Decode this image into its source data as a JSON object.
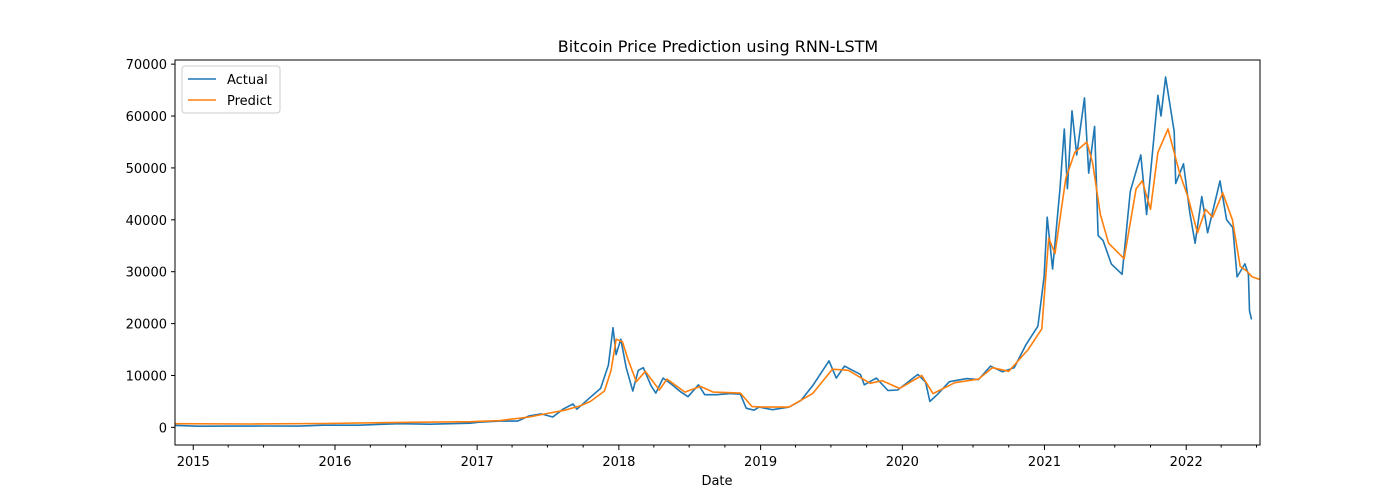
{
  "chart_data": {
    "type": "line",
    "title": "Bitcoin Price Prediction using RNN-LSTM",
    "xlabel": "Date",
    "ylabel": "",
    "x_range": [
      "2014-11-15",
      "2022-07-10"
    ],
    "ylim": [
      -3400,
      70800
    ],
    "grid": false,
    "legend_position": "top-left",
    "y_ticks": [
      0,
      10000,
      20000,
      30000,
      40000,
      50000,
      60000,
      70000
    ],
    "y_tick_labels": [
      "0",
      "10000",
      "20000",
      "30000",
      "40000",
      "50000",
      "60000",
      "70000"
    ],
    "x_ticks": [
      "2015-01-01",
      "2016-01-01",
      "2017-01-01",
      "2018-01-01",
      "2019-01-01",
      "2020-01-01",
      "2021-01-01",
      "2022-01-01"
    ],
    "x_tick_labels": [
      "2015",
      "2016",
      "2017",
      "2018",
      "2019",
      "2020",
      "2021",
      "2022"
    ],
    "colors": {
      "Actual": "#1f77b4",
      "Predict": "#ff7f0e"
    },
    "series": [
      {
        "name": "Actual",
        "points": [
          [
            "2014-11-15",
            380
          ],
          [
            "2015-01-15",
            220
          ],
          [
            "2015-04-01",
            240
          ],
          [
            "2015-07-01",
            260
          ],
          [
            "2015-10-01",
            240
          ],
          [
            "2015-12-01",
            420
          ],
          [
            "2016-03-01",
            420
          ],
          [
            "2016-06-15",
            700
          ],
          [
            "2016-09-01",
            600
          ],
          [
            "2016-12-15",
            800
          ],
          [
            "2017-01-05",
            1000
          ],
          [
            "2017-03-01",
            1200
          ],
          [
            "2017-04-15",
            1200
          ],
          [
            "2017-05-15",
            2200
          ],
          [
            "2017-06-15",
            2600
          ],
          [
            "2017-07-15",
            2000
          ],
          [
            "2017-08-10",
            3500
          ],
          [
            "2017-09-05",
            4500
          ],
          [
            "2017-09-15",
            3500
          ],
          [
            "2017-10-15",
            5500
          ],
          [
            "2017-11-15",
            7500
          ],
          [
            "2017-12-05",
            12000
          ],
          [
            "2017-12-17",
            19200
          ],
          [
            "2017-12-25",
            14000
          ],
          [
            "2018-01-06",
            17000
          ],
          [
            "2018-01-20",
            11500
          ],
          [
            "2018-02-06",
            7000
          ],
          [
            "2018-02-20",
            11000
          ],
          [
            "2018-03-05",
            11500
          ],
          [
            "2018-03-25",
            8000
          ],
          [
            "2018-04-06",
            6600
          ],
          [
            "2018-04-25",
            9500
          ],
          [
            "2018-05-15",
            8400
          ],
          [
            "2018-06-10",
            6800
          ],
          [
            "2018-06-28",
            5900
          ],
          [
            "2018-07-25",
            8200
          ],
          [
            "2018-08-10",
            6300
          ],
          [
            "2018-09-10",
            6300
          ],
          [
            "2018-10-15",
            6500
          ],
          [
            "2018-11-10",
            6400
          ],
          [
            "2018-11-25",
            3700
          ],
          [
            "2018-12-15",
            3300
          ],
          [
            "2018-12-28",
            3900
          ],
          [
            "2019-02-01",
            3400
          ],
          [
            "2019-03-15",
            3900
          ],
          [
            "2019-04-15",
            5200
          ],
          [
            "2019-05-15",
            8000
          ],
          [
            "2019-06-26",
            12800
          ],
          [
            "2019-07-15",
            9500
          ],
          [
            "2019-08-05",
            11800
          ],
          [
            "2019-09-15",
            10200
          ],
          [
            "2019-09-25",
            8200
          ],
          [
            "2019-10-26",
            9500
          ],
          [
            "2019-11-25",
            7100
          ],
          [
            "2019-12-20",
            7200
          ],
          [
            "2020-02-10",
            10200
          ],
          [
            "2020-03-01",
            8700
          ],
          [
            "2020-03-12",
            5000
          ],
          [
            "2020-04-01",
            6400
          ],
          [
            "2020-05-01",
            8800
          ],
          [
            "2020-06-15",
            9400
          ],
          [
            "2020-07-15",
            9200
          ],
          [
            "2020-08-15",
            11800
          ],
          [
            "2020-09-15",
            10700
          ],
          [
            "2020-10-15",
            11500
          ],
          [
            "2020-11-15",
            16000
          ],
          [
            "2020-12-15",
            19500
          ],
          [
            "2020-12-31",
            29000
          ],
          [
            "2021-01-08",
            40500
          ],
          [
            "2021-01-22",
            30500
          ],
          [
            "2021-02-10",
            46000
          ],
          [
            "2021-02-21",
            57500
          ],
          [
            "2021-03-01",
            46000
          ],
          [
            "2021-03-13",
            61000
          ],
          [
            "2021-03-25",
            52500
          ],
          [
            "2021-04-14",
            63500
          ],
          [
            "2021-04-25",
            49000
          ],
          [
            "2021-05-10",
            58000
          ],
          [
            "2021-05-19",
            37000
          ],
          [
            "2021-06-01",
            36000
          ],
          [
            "2021-06-22",
            31500
          ],
          [
            "2021-07-20",
            29500
          ],
          [
            "2021-08-10",
            45500
          ],
          [
            "2021-09-06",
            52500
          ],
          [
            "2021-09-21",
            41000
          ],
          [
            "2021-10-20",
            64000
          ],
          [
            "2021-10-28",
            60000
          ],
          [
            "2021-11-09",
            67500
          ],
          [
            "2021-12-01",
            57000
          ],
          [
            "2021-12-05",
            47000
          ],
          [
            "2021-12-25",
            50800
          ],
          [
            "2022-01-10",
            41500
          ],
          [
            "2022-01-24",
            35500
          ],
          [
            "2022-02-10",
            44500
          ],
          [
            "2022-02-25",
            37500
          ],
          [
            "2022-03-29",
            47500
          ],
          [
            "2022-04-15",
            40000
          ],
          [
            "2022-05-01",
            38500
          ],
          [
            "2022-05-12",
            29000
          ],
          [
            "2022-06-01",
            31500
          ],
          [
            "2022-06-10",
            29500
          ],
          [
            "2022-06-13",
            22500
          ],
          [
            "2022-06-18",
            20800
          ]
        ]
      },
      {
        "name": "Predict",
        "points": [
          [
            "2014-11-15",
            700
          ],
          [
            "2015-06-01",
            650
          ],
          [
            "2015-12-01",
            750
          ],
          [
            "2016-06-15",
            950
          ],
          [
            "2016-12-15",
            1100
          ],
          [
            "2017-03-01",
            1300
          ],
          [
            "2017-05-15",
            2000
          ],
          [
            "2017-06-25",
            2600
          ],
          [
            "2017-08-15",
            3300
          ],
          [
            "2017-09-25",
            4200
          ],
          [
            "2017-10-20",
            5000
          ],
          [
            "2017-11-25",
            7000
          ],
          [
            "2017-12-12",
            11000
          ],
          [
            "2017-12-25",
            17000
          ],
          [
            "2018-01-10",
            16500
          ],
          [
            "2018-01-25",
            13000
          ],
          [
            "2018-02-15",
            8800
          ],
          [
            "2018-03-10",
            10800
          ],
          [
            "2018-04-15",
            7200
          ],
          [
            "2018-05-05",
            9300
          ],
          [
            "2018-06-20",
            6800
          ],
          [
            "2018-07-30",
            7900
          ],
          [
            "2018-09-01",
            6800
          ],
          [
            "2018-11-10",
            6600
          ],
          [
            "2018-12-10",
            4000
          ],
          [
            "2019-01-10",
            3900
          ],
          [
            "2019-03-15",
            3900
          ],
          [
            "2019-05-15",
            6500
          ],
          [
            "2019-07-05",
            11200
          ],
          [
            "2019-08-15",
            11000
          ],
          [
            "2019-10-10",
            8500
          ],
          [
            "2019-11-10",
            9000
          ],
          [
            "2019-12-25",
            7500
          ],
          [
            "2020-02-20",
            10000
          ],
          [
            "2020-03-20",
            6500
          ],
          [
            "2020-05-15",
            8600
          ],
          [
            "2020-07-15",
            9300
          ],
          [
            "2020-08-20",
            11500
          ],
          [
            "2020-10-01",
            10800
          ],
          [
            "2020-11-20",
            15000
          ],
          [
            "2020-12-25",
            19000
          ],
          [
            "2021-01-12",
            36500
          ],
          [
            "2021-01-28",
            33500
          ],
          [
            "2021-02-25",
            48000
          ],
          [
            "2021-03-20",
            53000
          ],
          [
            "2021-04-20",
            55000
          ],
          [
            "2021-05-05",
            51000
          ],
          [
            "2021-05-25",
            41000
          ],
          [
            "2021-06-15",
            35500
          ],
          [
            "2021-07-25",
            32500
          ],
          [
            "2021-08-25",
            46000
          ],
          [
            "2021-09-10",
            47500
          ],
          [
            "2021-10-01",
            42000
          ],
          [
            "2021-10-20",
            53000
          ],
          [
            "2021-11-15",
            57500
          ],
          [
            "2021-12-15",
            49000
          ],
          [
            "2022-01-05",
            44500
          ],
          [
            "2022-01-30",
            37500
          ],
          [
            "2022-02-20",
            42000
          ],
          [
            "2022-03-10",
            40500
          ],
          [
            "2022-04-05",
            45200
          ],
          [
            "2022-04-30",
            40000
          ],
          [
            "2022-05-20",
            31000
          ],
          [
            "2022-06-05",
            30200
          ],
          [
            "2022-06-20",
            29000
          ],
          [
            "2022-07-10",
            28500
          ]
        ]
      }
    ]
  }
}
